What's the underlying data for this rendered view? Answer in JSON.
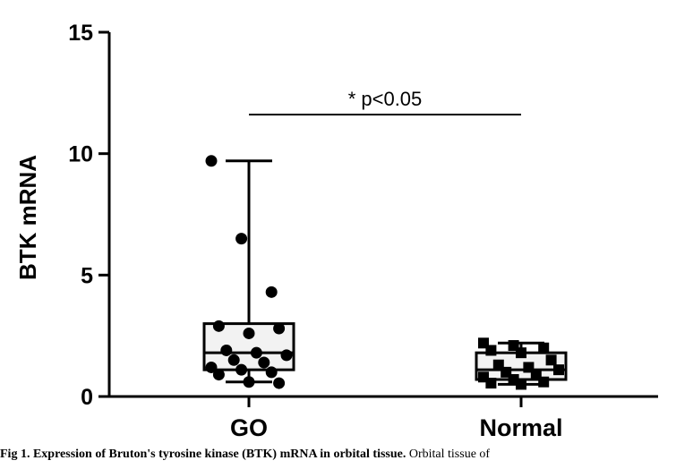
{
  "chart_data": {
    "type": "box",
    "ylabel": "BTK mRNA",
    "xlabel": "",
    "ylim": [
      0,
      15
    ],
    "yticks": [
      0,
      5,
      10,
      15
    ],
    "categories": [
      "GO",
      "Normal"
    ],
    "series": [
      {
        "category": "GO",
        "marker": "circle",
        "box": {
          "min": 0.6,
          "q1": 1.1,
          "median": 1.8,
          "q3": 3.0,
          "max": 9.7
        },
        "points": [
          9.7,
          6.5,
          4.3,
          2.9,
          2.6,
          2.8,
          1.9,
          1.8,
          1.7,
          1.5,
          1.4,
          1.2,
          1.1,
          1.0,
          0.9,
          0.6,
          0.55
        ]
      },
      {
        "category": "Normal",
        "marker": "square",
        "box": {
          "min": 0.5,
          "q1": 0.7,
          "median": 1.1,
          "q3": 1.8,
          "max": 2.2
        },
        "points": [
          2.2,
          2.1,
          2.0,
          1.9,
          1.8,
          1.5,
          1.3,
          1.2,
          1.1,
          1.0,
          0.9,
          0.8,
          0.7,
          0.6,
          0.55,
          0.5
        ]
      }
    ],
    "annotation": {
      "text": "* p<0.05"
    }
  },
  "caption": {
    "label": "Fig 1. Expression of Bruton's tyrosine kinase (BTK) mRNA in orbital tissue.",
    "text": "Orbital tissue of"
  }
}
